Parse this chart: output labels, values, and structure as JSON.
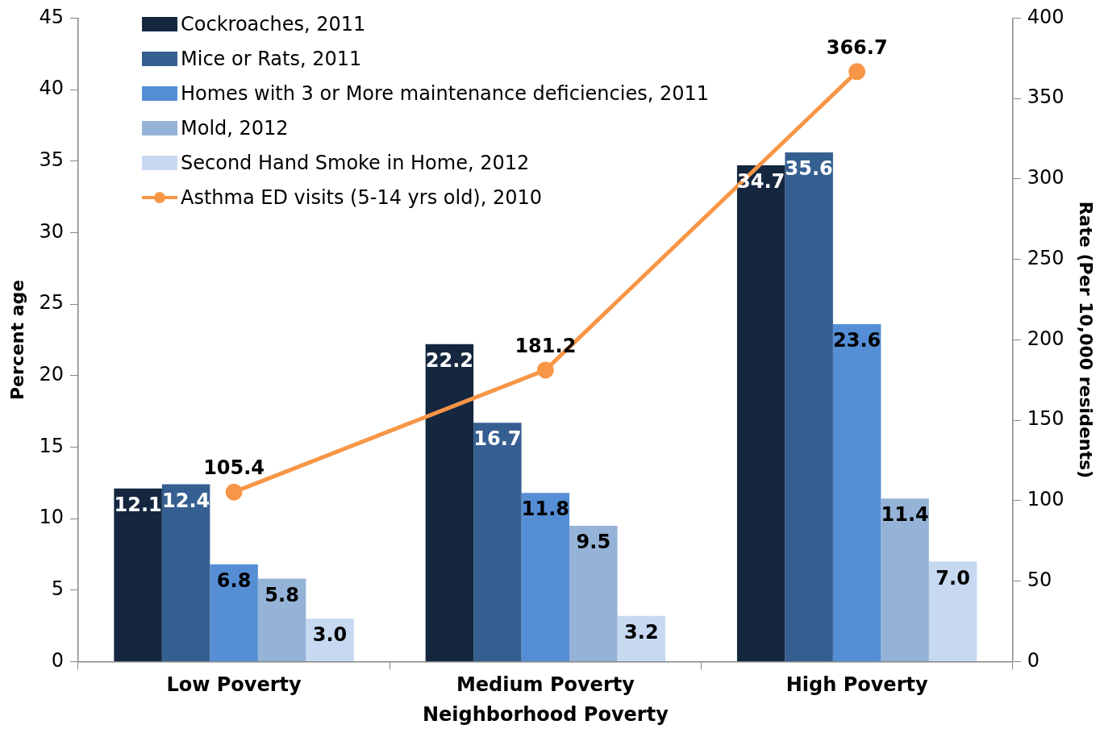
{
  "chart_data": {
    "type": "bar",
    "xlabel": "Neighborhood Poverty",
    "ylabel": "Percent age",
    "y2label": "Rate (Per 10,000 residents)",
    "categories": [
      "Low Poverty",
      "Medium Poverty",
      "High Poverty"
    ],
    "series": [
      {
        "name": "Cockroaches, 2011",
        "color": "#14273f",
        "values": [
          12.1,
          22.2,
          34.7
        ],
        "value_labels": [
          "12.1",
          "22.2",
          "34.7"
        ]
      },
      {
        "name": "Mice or Rats, 2011",
        "color": "#365f91",
        "values": [
          12.4,
          16.7,
          35.6
        ],
        "value_labels": [
          "12.4",
          "16.7",
          "35.6"
        ]
      },
      {
        "name": "Homes with 3 or More maintenance deficiencies, 2011",
        "color": "#558ed5",
        "values": [
          6.8,
          11.8,
          23.6
        ],
        "value_labels": [
          "6.8",
          "11.8",
          "23.6"
        ]
      },
      {
        "name": "Mold, 2012",
        "color": "#95b3d7",
        "values": [
          5.8,
          9.5,
          11.4
        ],
        "value_labels": [
          "5.8",
          "9.5",
          "11.4"
        ]
      },
      {
        "name": "Second Hand Smoke in Home, 2012",
        "color": "#c6d9f1",
        "values": [
          3.0,
          3.2,
          7.0
        ],
        "value_labels": [
          "3.0",
          "3.2",
          "7.0"
        ]
      },
      {
        "name": "Asthma ED visits (5-14 yrs old), 2010",
        "color": "#f79646",
        "type": "line",
        "axis": "y2",
        "values": [
          105.4,
          181.2,
          366.7
        ],
        "value_labels": [
          "105.4",
          "181.2",
          "366.7"
        ]
      }
    ],
    "ylim": [
      0,
      45
    ],
    "yticks": [
      0,
      5,
      10,
      15,
      20,
      25,
      30,
      35,
      40,
      45
    ],
    "y2lim": [
      0,
      400
    ],
    "y2ticks": [
      0,
      50,
      100,
      150,
      200,
      250,
      300,
      350,
      400
    ],
    "grid": false,
    "legend": "top left",
    "marker": "circle",
    "line_style": "solid"
  }
}
